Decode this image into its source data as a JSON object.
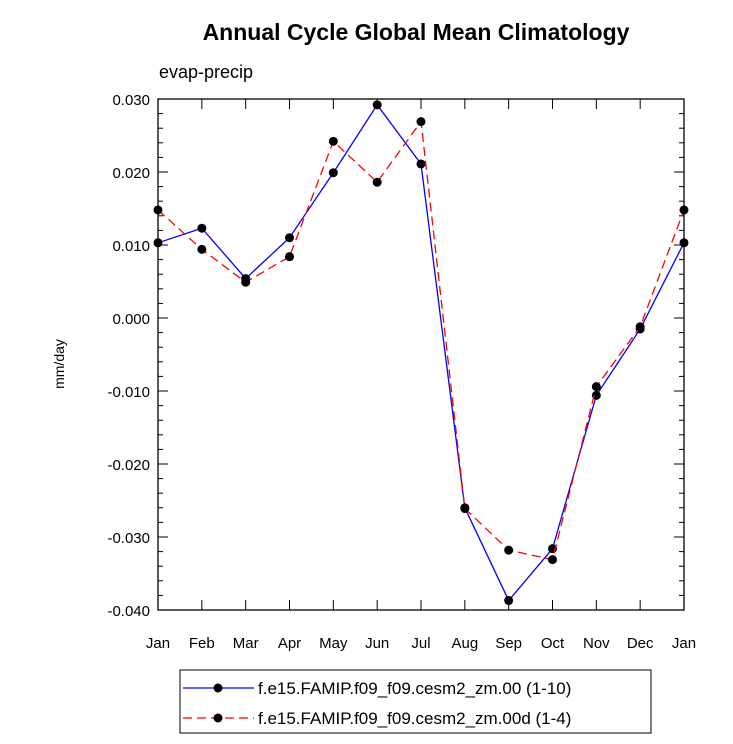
{
  "chart_data": {
    "type": "line",
    "title": "Annual Cycle Global Mean Climatology",
    "subtitle": "evap-precip",
    "xlabel": "",
    "ylabel": "mm/day",
    "categories": [
      "Jan",
      "Feb",
      "Mar",
      "Apr",
      "May",
      "Jun",
      "Jul",
      "Aug",
      "Sep",
      "Oct",
      "Nov",
      "Dec",
      "Jan"
    ],
    "ylim": [
      -0.04,
      0.03
    ],
    "yticks": [
      "0.030",
      "0.020",
      "0.010",
      "0.000",
      "-0.010",
      "-0.020",
      "-0.030",
      "-0.040"
    ],
    "ytick_values": [
      0.03,
      0.02,
      0.01,
      0.0,
      -0.01,
      -0.02,
      -0.03,
      -0.04
    ],
    "grid": false,
    "legend_position": "bottom",
    "series": [
      {
        "name": "f.e15.FAMIP.f09_f09.cesm2_zm.00 (1-10)",
        "color": "#0000ff",
        "line_style": "solid",
        "marker_color": "#000000",
        "values": [
          0.0103,
          0.0123,
          0.0054,
          0.011,
          0.0199,
          0.0292,
          0.0211,
          -0.026,
          -0.0387,
          -0.0316,
          -0.0106,
          -0.0015,
          0.0103
        ]
      },
      {
        "name": "f.e15.FAMIP.f09_f09.cesm2_zm.00d (1-4)",
        "color": "#ff0000",
        "line_style": "dashed",
        "marker_color": "#000000",
        "values": [
          0.0148,
          0.0094,
          0.0049,
          0.0084,
          0.0242,
          0.0186,
          0.0269,
          -0.0261,
          -0.0318,
          -0.0331,
          -0.0094,
          -0.0012,
          0.0148
        ]
      }
    ]
  }
}
